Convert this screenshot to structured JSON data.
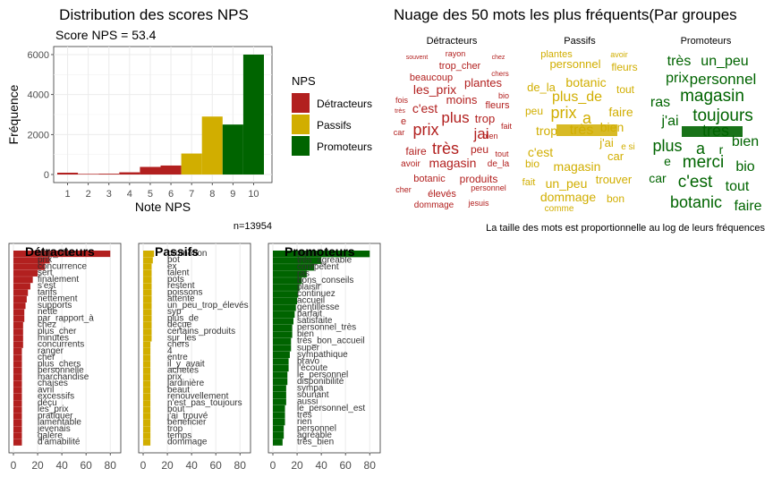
{
  "colors": {
    "detracteurs": "#B2201F",
    "passifs": "#D1AE00",
    "promoteurs": "#006400",
    "grid": "#EBEBEB",
    "panel_border": "#333333"
  },
  "hist": {
    "title": "Distribution des scores NPS",
    "subtitle": "Score NPS = 53.4",
    "xlabel": "Note NPS",
    "ylabel": "Fréquence",
    "caption": "n=13954",
    "legend_title": "NPS",
    "legend_items": [
      "Détracteurs",
      "Passifs",
      "Promoteurs"
    ]
  },
  "cloud": {
    "title": "Nuage des 50 mots les plus fréquents(Par groupes",
    "caption": "La taille des mots est proportionnelle au log de leurs fréquences",
    "groups": [
      "Détracteurs",
      "Passifs",
      "Promoteurs"
    ],
    "words_detracteurs": [
      "souvent",
      "rayon",
      "chez",
      "trop_cher",
      "beaucoup",
      "chers",
      "plantes",
      "les_prix",
      "bio",
      "fois",
      "moins",
      "c'est",
      "fleurs",
      "très",
      "plus",
      "trop",
      "e",
      "car",
      "prix",
      "jai",
      "fait",
      "bien",
      "faire",
      "très",
      "peu",
      "tout",
      "avoir",
      "magasin",
      "de_la",
      "botanic",
      "produits",
      "cher",
      "élevés",
      "personnel",
      "dommage",
      "jesuis"
    ],
    "words_passifs": [
      "plantes",
      "avoir",
      "personnel",
      "fleurs",
      "botanic",
      "de_la",
      "plus_de",
      "tout",
      "peu",
      "prix",
      "a",
      "faire",
      "trop",
      "bien",
      "très",
      "j'ai",
      "e si",
      "c'est",
      "car",
      "bio",
      "magasin",
      "fait",
      "un_peu",
      "trouver",
      "dommage",
      "bon",
      "comme"
    ],
    "words_promoteurs": [
      "très",
      "un_peu",
      "prix",
      "personnel",
      "magasin",
      "ras",
      "toujours",
      "j'ai",
      "tres",
      "bien",
      "plus",
      "a",
      "r",
      "merci",
      "e",
      "bio",
      "car",
      "c'est",
      "tout",
      "botanic",
      "faire"
    ]
  },
  "chart_data": [
    {
      "type": "bar",
      "title": "Distribution des scores NPS",
      "subtitle": "Score NPS = 53.4",
      "xlabel": "Note NPS",
      "ylabel": "Fréquence",
      "categories": [
        "1",
        "2",
        "3",
        "4",
        "5",
        "6",
        "7",
        "8",
        "9",
        "10"
      ],
      "values": [
        90,
        30,
        40,
        110,
        380,
        450,
        1050,
        2900,
        2500,
        6000
      ],
      "groups": [
        "Détracteurs",
        "Détracteurs",
        "Détracteurs",
        "Détracteurs",
        "Détracteurs",
        "Détracteurs",
        "Passifs",
        "Passifs",
        "Promoteurs",
        "Promoteurs"
      ],
      "ylim": [
        0,
        6300
      ],
      "yticks": [
        0,
        2000,
        4000,
        6000
      ],
      "grid": true,
      "legend": "right"
    },
    {
      "type": "bar",
      "orientation": "horizontal",
      "title": "Détracteurs",
      "categories": [
        "trop_cher",
        "prix",
        "concurrence",
        "sert",
        "finalement",
        "s'est",
        "tarifs",
        "nettement",
        "supports",
        "nette",
        "par_rapport_à",
        "chez",
        "plus_cher",
        "minutes",
        "concurrents",
        "ranger",
        "cher",
        "plus_chers",
        "personnelle",
        "marchandise",
        "chaises",
        "avril",
        "excessifs",
        "déçu",
        "les_prix",
        "pratiquer",
        "lamentable",
        "jevenais",
        "galère",
        "d'amabilité"
      ],
      "values": [
        80,
        30,
        26,
        20,
        16,
        14,
        12,
        11,
        10,
        9,
        9,
        8,
        8,
        8,
        8,
        7,
        7,
        7,
        7,
        7,
        7,
        7,
        7,
        7,
        7,
        7,
        7,
        7,
        7,
        7
      ],
      "xlim": [
        0,
        85
      ],
      "xticks": [
        0,
        20,
        40,
        60,
        80
      ]
    },
    {
      "type": "bar",
      "orientation": "horizontal",
      "title": "Passifs",
      "categories": [
        "promotion",
        "pot",
        "ex",
        "talent",
        "pots",
        "restent",
        "poissons",
        "attente",
        "un_peu_trop_élevés",
        "syp",
        "plus_de",
        "déçue",
        "certains_produits",
        "sur_les",
        "chers",
        "4",
        "entre",
        "il_y_avait",
        "achetés",
        "prix",
        "jardinière",
        "beaut",
        "renouvellement",
        "n'est_pas_toujours",
        "bout",
        "j'ai_trouvé",
        "bénéficier",
        "trop",
        "temps",
        "dommage"
      ],
      "values": [
        9,
        8,
        7,
        7,
        7,
        7,
        7,
        7,
        7,
        7,
        7,
        7,
        7,
        7,
        6,
        6,
        6,
        6,
        6,
        6,
        6,
        6,
        6,
        6,
        6,
        6,
        6,
        6,
        6,
        6
      ],
      "xlim": [
        0,
        85
      ],
      "xticks": [
        0,
        20,
        40,
        60,
        80
      ]
    },
    {
      "type": "bar",
      "orientation": "horizontal",
      "title": "Promoteurs",
      "categories": [
        "merci",
        "très_agréable",
        "compétent",
        "ras",
        "bons_conseils",
        "plaisir",
        "continuez",
        "accueil",
        "gentillesse",
        "parfait",
        "satisfaite",
        "personnel_très",
        "bien",
        "très_bon_accueil",
        "super",
        "sympathique",
        "bravo",
        "l'écoute",
        "le_personnel",
        "disponibilité",
        "sympa",
        "souriant",
        "aussi",
        "le_personnel_est",
        "tres",
        "rien",
        "personnel",
        "agréable",
        "très_bien"
      ],
      "values": [
        80,
        40,
        34,
        28,
        24,
        22,
        21,
        20,
        19,
        18,
        17,
        16,
        16,
        15,
        15,
        14,
        13,
        13,
        12,
        12,
        11,
        11,
        11,
        10,
        10,
        10,
        9,
        9,
        8
      ],
      "xlim": [
        0,
        85
      ],
      "xticks": [
        0,
        20,
        40,
        60,
        80
      ]
    }
  ]
}
